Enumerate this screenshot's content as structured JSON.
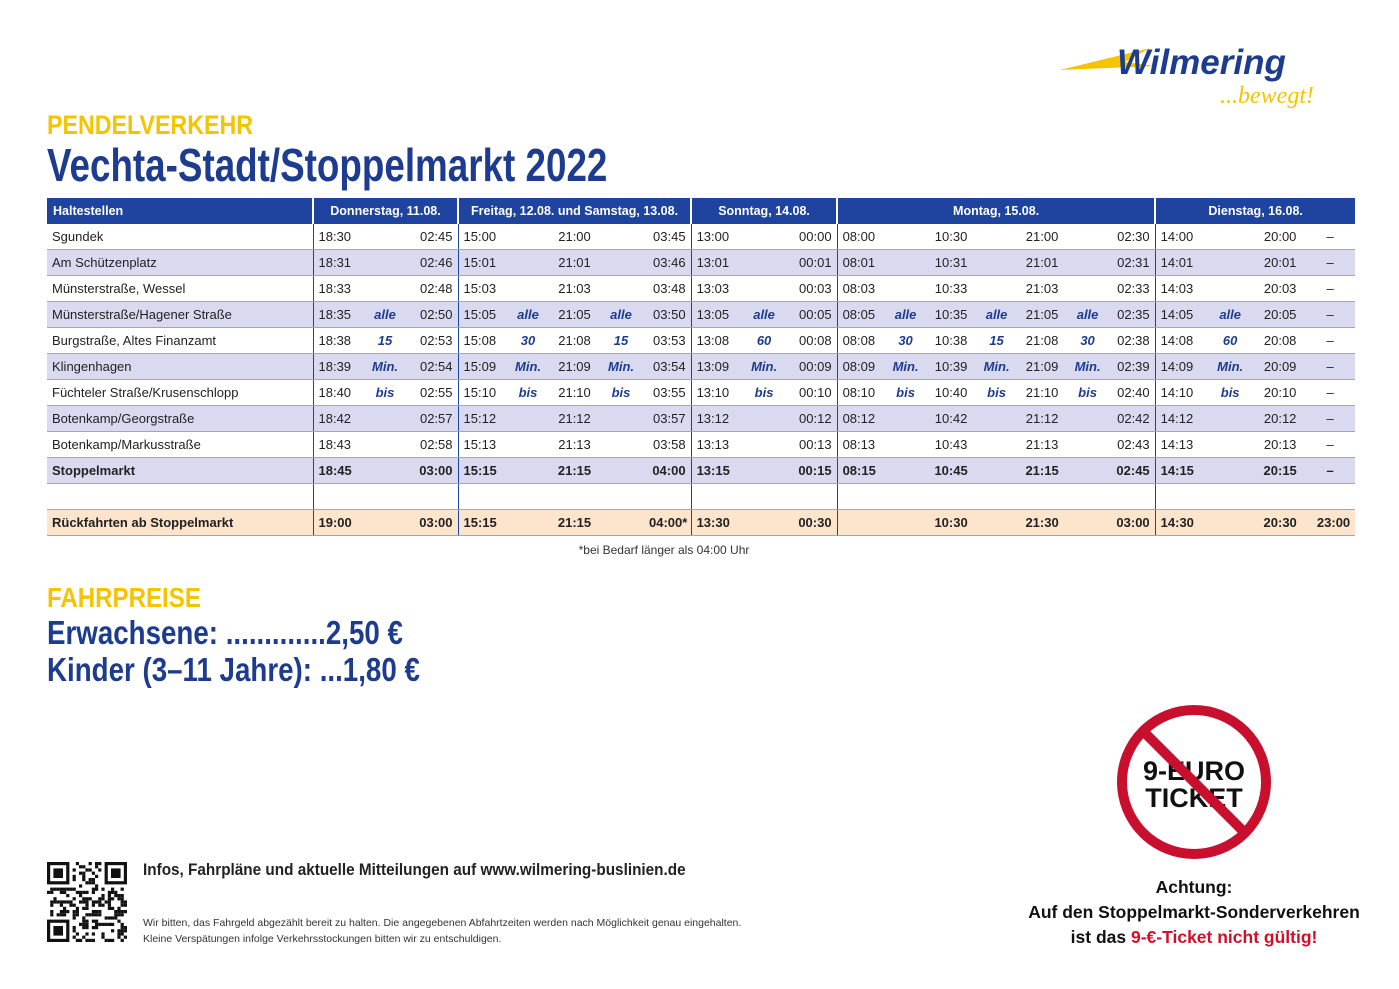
{
  "logo": {
    "brand": "Wilmering",
    "slogan": "...bewegt!"
  },
  "header": {
    "kicker": "PENDELVERKEHR",
    "title": "Vechta-Stadt/Stoppelmarkt 2022"
  },
  "table": {
    "header": [
      "Haltestellen",
      "Donnerstag, 11.08.",
      "Freitag, 12.08. und Samstag, 13.08.",
      "Sonntag, 14.08.",
      "Montag, 15.08.",
      "Dienstag, 16.08."
    ],
    "rows": [
      [
        "Sgundek",
        "18:30",
        null,
        "02:45",
        "15:00",
        null,
        "21:00",
        null,
        "03:45",
        "13:00",
        null,
        "00:00",
        "08:00",
        null,
        "10:30",
        null,
        "21:00",
        null,
        "02:30",
        "14:00",
        null,
        "20:00",
        "–"
      ],
      [
        "Am Schützenplatz",
        "18:31",
        null,
        "02:46",
        "15:01",
        null,
        "21:01",
        null,
        "03:46",
        "13:01",
        null,
        "00:01",
        "08:01",
        null,
        "10:31",
        null,
        "21:01",
        null,
        "02:31",
        "14:01",
        null,
        "20:01",
        "–"
      ],
      [
        "Münsterstraße, Wessel",
        "18:33",
        null,
        "02:48",
        "15:03",
        null,
        "21:03",
        null,
        "03:48",
        "13:03",
        null,
        "00:03",
        "08:03",
        null,
        "10:33",
        null,
        "21:03",
        null,
        "02:33",
        "14:03",
        null,
        "20:03",
        "–"
      ],
      [
        "Münsterstraße/Hagener Straße",
        "18:35",
        "alle",
        "02:50",
        "15:05",
        "alle",
        "21:05",
        "alle",
        "03:50",
        "13:05",
        "alle",
        "00:05",
        "08:05",
        "alle",
        "10:35",
        "alle",
        "21:05",
        "alle",
        "02:35",
        "14:05",
        "alle",
        "20:05",
        "–"
      ],
      [
        "Burgstraße, Altes Finanzamt",
        "18:38",
        "15",
        "02:53",
        "15:08",
        "30",
        "21:08",
        "15",
        "03:53",
        "13:08",
        "60",
        "00:08",
        "08:08",
        "30",
        "10:38",
        "15",
        "21:08",
        "30",
        "02:38",
        "14:08",
        "60",
        "20:08",
        "–"
      ],
      [
        "Klingenhagen",
        "18:39",
        "Min.",
        "02:54",
        "15:09",
        "Min.",
        "21:09",
        "Min.",
        "03:54",
        "13:09",
        "Min.",
        "00:09",
        "08:09",
        "Min.",
        "10:39",
        "Min.",
        "21:09",
        "Min.",
        "02:39",
        "14:09",
        "Min.",
        "20:09",
        "–"
      ],
      [
        "Füchteler Straße/Krusenschlopp",
        "18:40",
        "bis",
        "02:55",
        "15:10",
        "bis",
        "21:10",
        "bis",
        "03:55",
        "13:10",
        "bis",
        "00:10",
        "08:10",
        "bis",
        "10:40",
        "bis",
        "21:10",
        "bis",
        "02:40",
        "14:10",
        "bis",
        "20:10",
        "–"
      ],
      [
        "Botenkamp/Georgstraße",
        "18:42",
        null,
        "02:57",
        "15:12",
        null,
        "21:12",
        null,
        "03:57",
        "13:12",
        null,
        "00:12",
        "08:12",
        null,
        "10:42",
        null,
        "21:12",
        null,
        "02:42",
        "14:12",
        null,
        "20:12",
        "–"
      ],
      [
        "Botenkamp/Markusstraße",
        "18:43",
        null,
        "02:58",
        "15:13",
        null,
        "21:13",
        null,
        "03:58",
        "13:13",
        null,
        "00:13",
        "08:13",
        null,
        "10:43",
        null,
        "21:13",
        null,
        "02:43",
        "14:13",
        null,
        "20:13",
        "–"
      ],
      [
        "Stoppelmarkt",
        "18:45",
        null,
        "03:00",
        "15:15",
        null,
        "21:15",
        null,
        "04:00",
        "13:15",
        null,
        "00:15",
        "08:15",
        null,
        "10:45",
        null,
        "21:15",
        null,
        "02:45",
        "14:15",
        null,
        "20:15",
        "–"
      ],
      [
        "Rückfahrten ab Stoppelmarkt",
        "19:00",
        null,
        "03:00",
        "15:15",
        null,
        "21:15",
        null,
        "04:00*",
        "13:30",
        null,
        "00:30",
        null,
        null,
        "10:30",
        null,
        "21:30",
        null,
        "03:00",
        "14:30",
        null,
        "20:30",
        "23:00"
      ]
    ],
    "footnote": "*bei Bedarf länger als 04:00 Uhr"
  },
  "fares": {
    "heading": "FAHRPREISE",
    "items": [
      {
        "label": "Erwachsene:",
        "leader": ".............",
        "price": "2,50 €"
      },
      {
        "label": "Kinder (3–11 Jahre):",
        "leader": "...",
        "price": "1,80 €"
      }
    ]
  },
  "footer": {
    "info": "Infos, Fahrpläne und aktuelle Mitteilungen auf www.wilmering-buslinien.de",
    "notice": [
      "Wir bitten, das Fahrgeld abgezählt bereit zu halten. Die angegebenen Abfahrtzeiten werden nach Möglichkeit genau eingehalten.",
      "Kleine Verspätungen infolge Verkehrsstockungen bitten wir zu entschuldigen."
    ]
  },
  "sign": {
    "lines": [
      "9-EURO",
      "TICKET"
    ]
  },
  "warning": {
    "heading": "Achtung:",
    "line1": "Auf den Stoppelmarkt-Sonderverkehren",
    "line2_start": "ist das",
    "line2_highlight": "9-€-Ticket nicht gültig!"
  }
}
